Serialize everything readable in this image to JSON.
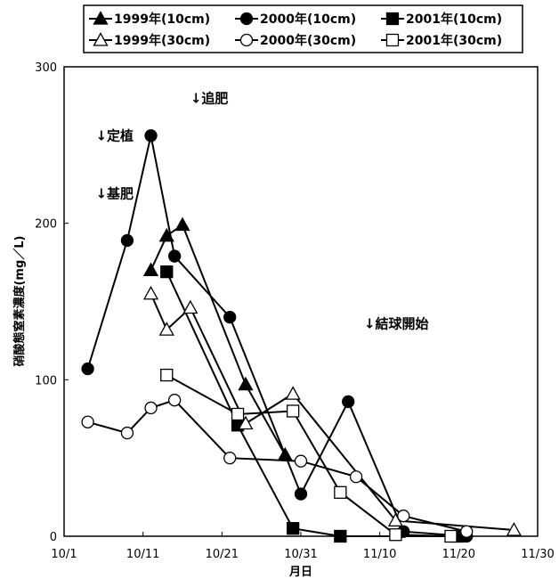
{
  "chart_data": {
    "type": "line",
    "title": "",
    "xlabel": "月日",
    "ylabel": "硝酸態窒素濃度(mg／L)",
    "ylim": [
      0,
      300
    ],
    "y_ticks": [
      0,
      100,
      200,
      300
    ],
    "x_ticks": [
      "10/1",
      "10/11",
      "10/21",
      "10/31",
      "11/10",
      "11/20",
      "11/30"
    ],
    "grid": false,
    "legend_position": "top",
    "series": [
      {
        "name": "1999年(10cm)",
        "marker": "filled-triangle",
        "x": [
          "10/12",
          "10/14",
          "10/16",
          "10/24",
          "10/29"
        ],
        "y": [
          170,
          192,
          199,
          97,
          52
        ]
      },
      {
        "name": "2000年(10cm)",
        "marker": "filled-circle",
        "x": [
          "10/4",
          "10/9",
          "10/12",
          "10/15",
          "10/22",
          "10/31",
          "11/6",
          "11/13",
          "11/21"
        ],
        "y": [
          107,
          189,
          256,
          179,
          140,
          27,
          86,
          3,
          0
        ]
      },
      {
        "name": "2001年(10cm)",
        "marker": "filled-square",
        "x": [
          "10/14",
          "10/23",
          "10/30",
          "11/5",
          "11/20"
        ],
        "y": [
          169,
          71,
          5,
          0,
          0
        ]
      },
      {
        "name": "1999年(30cm)",
        "marker": "open-triangle",
        "x": [
          "10/12",
          "10/14",
          "10/17",
          "10/24",
          "10/30",
          "11/12",
          "11/27"
        ],
        "y": [
          155,
          132,
          146,
          72,
          91,
          10,
          4
        ]
      },
      {
        "name": "2000年(30cm)",
        "marker": "open-circle",
        "x": [
          "10/4",
          "10/9",
          "10/12",
          "10/15",
          "10/22",
          "10/31",
          "11/7",
          "11/13",
          "11/21"
        ],
        "y": [
          73,
          66,
          82,
          87,
          50,
          48,
          38,
          13,
          3
        ]
      },
      {
        "name": "2001年(30cm)",
        "marker": "open-square",
        "x": [
          "10/14",
          "10/23",
          "10/30",
          "11/5",
          "11/12",
          "11/19"
        ],
        "y": [
          103,
          78,
          80,
          28,
          1,
          0
        ]
      }
    ],
    "annotations": [
      {
        "text": "↓追肥",
        "date": "10/17",
        "y": 277
      },
      {
        "text": "↓定植",
        "date": "10/5",
        "y": 253
      },
      {
        "text": "↓基肥",
        "date": "10/5",
        "y": 216
      },
      {
        "text": "↓結球開始",
        "date": "11/8",
        "y": 133
      }
    ]
  }
}
